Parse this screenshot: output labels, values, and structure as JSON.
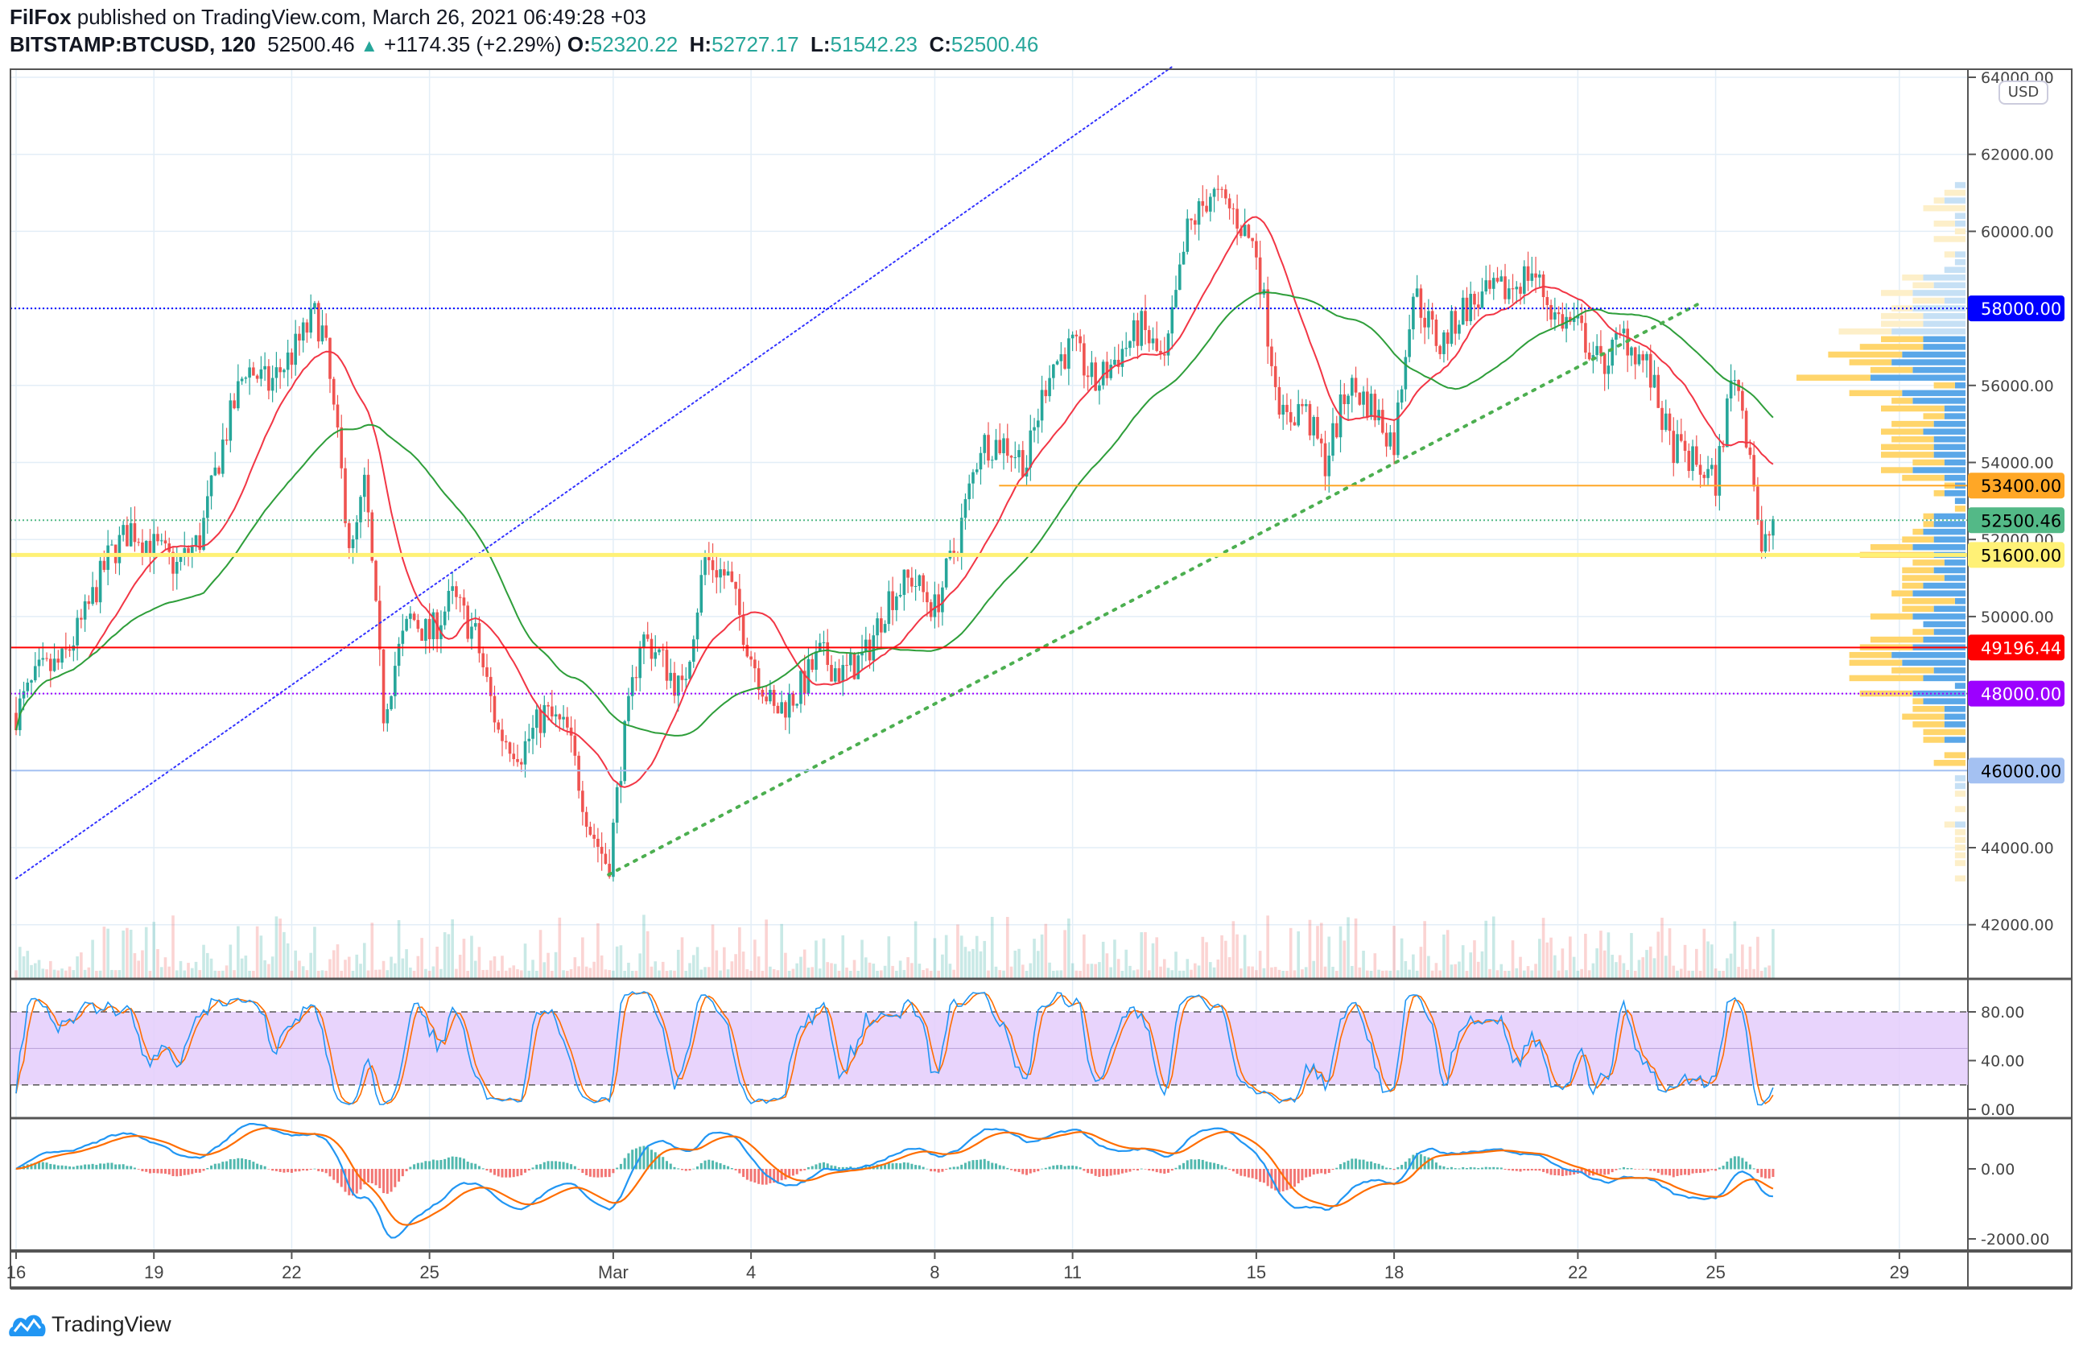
{
  "header": {
    "author": "FilFox",
    "published": "published on TradingView.com, March 26, 2021 06:49:28 +03",
    "symbol": "BITSTAMP:BTCUSD, 120",
    "last": "52500.46",
    "change": "+1174.35 (+2.29%)",
    "o_label": "O:",
    "o": "52320.22",
    "h_label": "H:",
    "h": "52727.17",
    "l_label": "L:",
    "l": "51542.23",
    "c_label": "C:",
    "c": "52500.46"
  },
  "currency": "USD",
  "branding": "TradingView",
  "chart_data": {
    "type": "candlestick",
    "title": "BITSTAMP:BTCUSD, 120",
    "x_unit": "days since Feb 16, 2021",
    "x_ticks": [
      "16",
      "19",
      "22",
      "25",
      "Mar",
      "4",
      "8",
      "11",
      "15",
      "18",
      "22",
      "25",
      "29"
    ],
    "x_tick_days": [
      0,
      3,
      6,
      9,
      13,
      16,
      20,
      23,
      27,
      30,
      34,
      37,
      41
    ],
    "y_ticks": [
      "64000.00",
      "62000.00",
      "60000.00",
      "56000.00",
      "54000.00",
      "52000.00",
      "50000.00",
      "44000.00",
      "42000.00"
    ],
    "y_tick_values": [
      64000,
      62000,
      60000,
      56000,
      54000,
      52000,
      50000,
      44000,
      42000
    ],
    "ylim": [
      41000,
      64300
    ],
    "price_path": [
      [
        0,
        47500
      ],
      [
        0.5,
        48500
      ],
      [
        1,
        48800
      ],
      [
        1.5,
        50000
      ],
      [
        2,
        51500
      ],
      [
        2.5,
        52300
      ],
      [
        3,
        51800
      ],
      [
        3.5,
        51300
      ],
      [
        4,
        52000
      ],
      [
        4.5,
        54500
      ],
      [
        5,
        56500
      ],
      [
        5.5,
        56000
      ],
      [
        6,
        56800
      ],
      [
        6.5,
        57800
      ],
      [
        6.7,
        57300
      ],
      [
        7,
        54500
      ],
      [
        7.3,
        51500
      ],
      [
        7.6,
        53500
      ],
      [
        8,
        47500
      ],
      [
        8.3,
        49000
      ],
      [
        8.6,
        50000
      ],
      [
        9,
        49500
      ],
      [
        9.5,
        50500
      ],
      [
        10,
        49500
      ],
      [
        10.5,
        47000
      ],
      [
        11,
        46500
      ],
      [
        11.5,
        47500
      ],
      [
        12,
        47000
      ],
      [
        12.5,
        44500
      ],
      [
        12.9,
        43500
      ],
      [
        13.2,
        46500
      ],
      [
        13.6,
        49500
      ],
      [
        14,
        49000
      ],
      [
        14.5,
        48000
      ],
      [
        15,
        51500
      ],
      [
        15.5,
        51000
      ],
      [
        16,
        49000
      ],
      [
        16.5,
        47500
      ],
      [
        17,
        48000
      ],
      [
        17.5,
        49000
      ],
      [
        18,
        48500
      ],
      [
        18.5,
        49000
      ],
      [
        19,
        50500
      ],
      [
        19.5,
        51000
      ],
      [
        20,
        50200
      ],
      [
        20.5,
        52000
      ],
      [
        21,
        54500
      ],
      [
        21.5,
        54500
      ],
      [
        22,
        54000
      ],
      [
        22.5,
        56500
      ],
      [
        23,
        57000
      ],
      [
        23.5,
        56000
      ],
      [
        24,
        56800
      ],
      [
        24.5,
        57500
      ],
      [
        25,
        56500
      ],
      [
        25.5,
        60000
      ],
      [
        26,
        61000
      ],
      [
        26.5,
        60500
      ],
      [
        27,
        59500
      ],
      [
        27.3,
        57000
      ],
      [
        27.6,
        55000
      ],
      [
        28,
        55500
      ],
      [
        28.5,
        54000
      ],
      [
        29,
        56000
      ],
      [
        29.5,
        55500
      ],
      [
        30,
        54500
      ],
      [
        30.4,
        58500
      ],
      [
        30.8,
        57500
      ],
      [
        31,
        57000
      ],
      [
        31.5,
        58000
      ],
      [
        32,
        58300
      ],
      [
        32.5,
        58500
      ],
      [
        33,
        59000
      ],
      [
        33.5,
        57800
      ],
      [
        34,
        57500
      ],
      [
        34.5,
        56500
      ],
      [
        35,
        57300
      ],
      [
        35.5,
        56500
      ],
      [
        36,
        54500
      ],
      [
        36.5,
        54000
      ],
      [
        37,
        53500
      ],
      [
        37.4,
        56500
      ],
      [
        37.8,
        54000
      ],
      [
        38,
        51500
      ],
      [
        38.25,
        52500
      ]
    ],
    "price_lines": [
      {
        "price": 58000,
        "label": "58000.00",
        "color": "#0000ff",
        "style": "dotted",
        "text_color": "#ffffff"
      },
      {
        "price": 53400,
        "label": "53400.00",
        "color": "#ffa726",
        "style": "solid",
        "text_color": "#000000"
      },
      {
        "price": 52500.46,
        "label": "52500.46",
        "color": "#53b987",
        "style": "dotted",
        "text_color": "#000000"
      },
      {
        "price": 51600,
        "label": "51600.00",
        "color": "#fff176",
        "style": "thick",
        "text_color": "#000000"
      },
      {
        "price": 49196.44,
        "label": "49196.44",
        "color": "#ff0000",
        "style": "solid",
        "text_color": "#ffffff"
      },
      {
        "price": 48000,
        "label": "48000.00",
        "color": "#9c00ff",
        "style": "dotted",
        "text_color": "#ffffff"
      },
      {
        "price": 46000,
        "label": "46000.00",
        "color": "#a4c1f2",
        "style": "solid",
        "text_color": "#000000"
      }
    ],
    "trendlines": [
      {
        "name": "blue-channel-line",
        "from": [
          0,
          43200
        ],
        "to": [
          25.2,
          64300
        ],
        "color": "#3333ff"
      },
      {
        "name": "green-support-line",
        "from": [
          12.9,
          43300
        ],
        "to": [
          36.6,
          58100
        ],
        "color": "#4caf50"
      }
    ],
    "moving_averages": [
      {
        "name": "fast",
        "color": "#f23645"
      },
      {
        "name": "slow",
        "color": "#2e9e3a"
      }
    ],
    "colors": {
      "up": "#26a69a",
      "down": "#ef5350",
      "vp_up": "#5aa7e8",
      "vp_down": "#ffd56b"
    },
    "stoch": {
      "ticks": [
        "80.00",
        "40.00",
        "0.00"
      ],
      "tick_values": [
        80,
        40,
        0
      ],
      "band": [
        20,
        80
      ],
      "k_color": "#2196f3",
      "d_color": "#ff6d00",
      "band_color": "#e4ccfb"
    },
    "macd": {
      "ticks": [
        "0.00",
        "-2000.00"
      ],
      "tick_values": [
        0,
        -2000
      ],
      "macd_color": "#2196f3",
      "signal_color": "#ff6d00"
    }
  }
}
